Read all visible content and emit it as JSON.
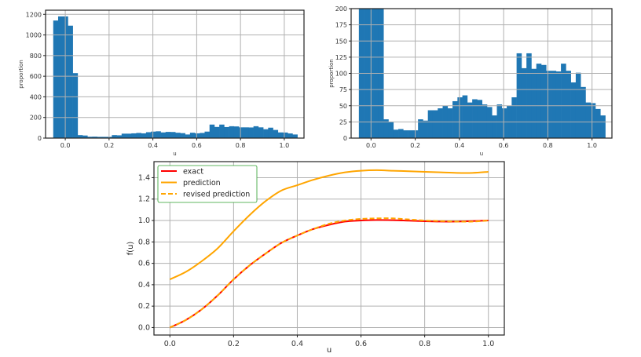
{
  "chart_data": [
    {
      "type": "bar",
      "subtype": "histogram",
      "xlabel": "u",
      "ylabel": "proportion",
      "xlim": [
        -0.09,
        1.09
      ],
      "ylim": [
        0,
        1240
      ],
      "xticks": [
        "0.0",
        "0.2",
        "0.4",
        "0.6",
        "0.8",
        "1.0"
      ],
      "yticks": [
        "0",
        "200",
        "400",
        "600",
        "800",
        "1000",
        "1200"
      ],
      "grid": true,
      "color": "#1f77b4",
      "bin_start": -0.055,
      "bin_width": 0.0223,
      "values": [
        1140,
        1180,
        1180,
        1090,
        630,
        29,
        25,
        13,
        14,
        12,
        12,
        12,
        29,
        27,
        43,
        43,
        46,
        50,
        46,
        57,
        63,
        66,
        55,
        60,
        59,
        52,
        48,
        35,
        52,
        46,
        50,
        63,
        131,
        108,
        131,
        107,
        115,
        113,
        104,
        104,
        103,
        115,
        104,
        86,
        101,
        79,
        55,
        54,
        45,
        35
      ]
    },
    {
      "type": "bar",
      "subtype": "histogram (zoomed)",
      "xlabel": "u",
      "ylabel": "proportion",
      "xlim": [
        -0.09,
        1.09
      ],
      "ylim": [
        0,
        200
      ],
      "xticks": [
        "0.0",
        "0.2",
        "0.4",
        "0.6",
        "0.8",
        "1.0"
      ],
      "yticks": [
        "0",
        "25",
        "50",
        "75",
        "100",
        "125",
        "150",
        "175",
        "200"
      ],
      "grid": true,
      "color": "#1f77b4",
      "bin_start": -0.055,
      "bin_width": 0.0223,
      "values": [
        1140,
        1180,
        1180,
        1090,
        630,
        29,
        25,
        13,
        14,
        12,
        12,
        12,
        29,
        27,
        43,
        43,
        46,
        50,
        46,
        57,
        63,
        66,
        55,
        60,
        59,
        52,
        48,
        35,
        52,
        46,
        50,
        63,
        131,
        108,
        131,
        107,
        115,
        113,
        104,
        104,
        103,
        115,
        104,
        86,
        101,
        79,
        55,
        54,
        45,
        35
      ]
    },
    {
      "type": "line",
      "xlabel": "u",
      "ylabel": "f(u)",
      "xlim": [
        -0.05,
        1.05
      ],
      "ylim": [
        -0.07,
        1.55
      ],
      "xticks": [
        "0.0",
        "0.2",
        "0.4",
        "0.6",
        "0.8",
        "1.0"
      ],
      "yticks": [
        "0.0",
        "0.2",
        "0.4",
        "0.6",
        "0.8",
        "1.0",
        "1.2",
        "1.4"
      ],
      "grid": true,
      "legend_position": "top-left",
      "x": [
        0,
        0.05,
        0.1,
        0.15,
        0.2,
        0.25,
        0.3,
        0.35,
        0.4,
        0.45,
        0.5,
        0.55,
        0.6,
        0.65,
        0.7,
        0.75,
        0.8,
        0.85,
        0.9,
        0.95,
        1.0
      ],
      "series": [
        {
          "name": "exact",
          "color": "#ff0000",
          "style": "solid",
          "values": [
            0,
            0.07,
            0.17,
            0.3,
            0.45,
            0.58,
            0.69,
            0.79,
            0.86,
            0.92,
            0.96,
            0.99,
            1.0,
            1.005,
            1.003,
            0.998,
            0.993,
            0.99,
            0.99,
            0.995,
            1.0
          ]
        },
        {
          "name": "prediction",
          "color": "#ffa500",
          "style": "solid",
          "values": [
            0.45,
            0.52,
            0.62,
            0.74,
            0.9,
            1.05,
            1.18,
            1.28,
            1.33,
            1.38,
            1.42,
            1.45,
            1.465,
            1.47,
            1.465,
            1.46,
            1.455,
            1.45,
            1.445,
            1.445,
            1.455
          ]
        },
        {
          "name": "revised prediction",
          "color": "#ffa500",
          "style": "dashed",
          "values": [
            0,
            0.07,
            0.17,
            0.3,
            0.45,
            0.58,
            0.69,
            0.79,
            0.86,
            0.92,
            0.97,
            1.0,
            1.015,
            1.02,
            1.02,
            1.01,
            1.0,
            0.995,
            0.99,
            0.99,
            1.0
          ]
        }
      ]
    }
  ]
}
